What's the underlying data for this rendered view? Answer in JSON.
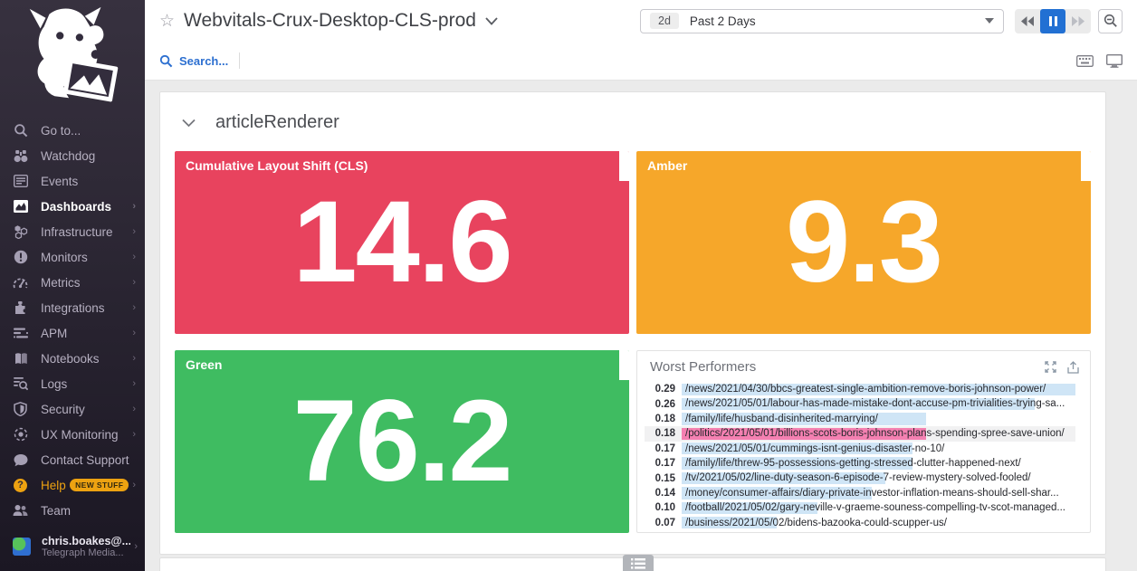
{
  "sidebar": {
    "logo": "datadog-dog-logo",
    "items": [
      {
        "label": "Go to...",
        "icon": "search-icon",
        "arrow": false,
        "active": false
      },
      {
        "label": "Watchdog",
        "icon": "binoculars-icon",
        "arrow": false,
        "active": false
      },
      {
        "label": "Events",
        "icon": "event-list-icon",
        "arrow": false,
        "active": false
      },
      {
        "label": "Dashboards",
        "icon": "dashboard-chart-icon",
        "arrow": true,
        "active": true
      },
      {
        "label": "Infrastructure",
        "icon": "hexagons-icon",
        "arrow": true,
        "active": false
      },
      {
        "label": "Monitors",
        "icon": "alert-circle-icon",
        "arrow": true,
        "active": false
      },
      {
        "label": "Metrics",
        "icon": "gauge-icon",
        "arrow": true,
        "active": false
      },
      {
        "label": "Integrations",
        "icon": "puzzle-icon",
        "arrow": true,
        "active": false
      },
      {
        "label": "APM",
        "icon": "trace-bars-icon",
        "arrow": true,
        "active": false
      },
      {
        "label": "Notebooks",
        "icon": "notebook-icon",
        "arrow": true,
        "active": false
      },
      {
        "label": "Logs",
        "icon": "log-search-icon",
        "arrow": true,
        "active": false
      },
      {
        "label": "Security",
        "icon": "shield-icon",
        "arrow": true,
        "active": false
      },
      {
        "label": "UX Monitoring",
        "icon": "target-icon",
        "arrow": true,
        "active": false
      },
      {
        "label": "Contact Support",
        "icon": "chat-bubble-icon",
        "arrow": false,
        "active": false
      },
      {
        "label": "Help",
        "icon": "help-circle-icon",
        "arrow": true,
        "active": false,
        "help": true,
        "badge": "NEW STUFF"
      },
      {
        "label": "Team",
        "icon": "people-icon",
        "arrow": false,
        "active": false
      }
    ],
    "user": {
      "name": "chris.boakes@...",
      "org": "Telegraph Media...",
      "avatar": "user-avatar"
    }
  },
  "header": {
    "title": "Webvitals-Crux-Desktop-CLS-prod",
    "star_icon": "☆",
    "search_label": "Search...",
    "time_range": {
      "chip": "2d",
      "label": "Past 2 Days"
    }
  },
  "section": {
    "title": "articleRenderer"
  },
  "widgets": {
    "stats": [
      {
        "name": "cls-widget",
        "title": "Cumulative Layout Shift (CLS)",
        "value": "14.6",
        "color": "#e8435e"
      },
      {
        "name": "amber-widget",
        "title": "Amber",
        "value": "9.3",
        "color": "#f6a72a"
      },
      {
        "name": "green-widget",
        "title": "Green",
        "value": "76.2",
        "color": "#3fbc61"
      }
    ],
    "worst_performers": {
      "title": "Worst Performers",
      "max_value": 0.29,
      "bar_colors": {
        "blue": "#cfe5f6",
        "pink": "#f480b1"
      },
      "rows": [
        {
          "value": "0.29",
          "url": "/news/2021/04/30/bbcs-greatest-single-ambition-remove-boris-johnson-power/",
          "bar": "blue",
          "state": "normal"
        },
        {
          "value": "0.26",
          "url": "/news/2021/05/01/labour-has-made-mistake-dont-accuse-pm-trivialities-trying-sa...",
          "bar": "blue",
          "state": "normal"
        },
        {
          "value": "0.18",
          "url": "/family/life/husband-disinherited-marrying/",
          "bar": "blue",
          "state": "normal"
        },
        {
          "value": "0.18",
          "url": "/politics/2021/05/01/billions-scots-boris-johnson-plans-spending-spree-save-union/",
          "bar": "pink",
          "state": "hover"
        },
        {
          "value": "0.17",
          "url": "/news/2021/05/01/cummings-isnt-genius-disaster-no-10/",
          "bar": "blue",
          "state": "normal"
        },
        {
          "value": "0.17",
          "url": "/family/life/threw-95-possessions-getting-stressed-clutter-happened-next/",
          "bar": "blue",
          "state": "normal"
        },
        {
          "value": "0.15",
          "url": "/tv/2021/05/02/line-duty-season-6-episode-7-review-mystery-solved-fooled/",
          "bar": "blue",
          "state": "normal"
        },
        {
          "value": "0.14",
          "url": "/money/consumer-affairs/diary-private-investor-inflation-means-should-sell-shar...",
          "bar": "blue",
          "state": "normal"
        },
        {
          "value": "0.10",
          "url": "/football/2021/05/02/gary-neville-v-graeme-souness-compelling-tv-scot-managed...",
          "bar": "blue",
          "state": "normal"
        },
        {
          "value": "0.07",
          "url": "/business/2021/05/02/bidens-bazooka-could-scupper-us/",
          "bar": "blue",
          "state": "normal"
        }
      ]
    }
  },
  "colors": {
    "red": "#e8435e",
    "amber": "#f6a72a",
    "green": "#3fbc61",
    "bar_blue": "#cfe5f6",
    "bar_pink": "#f480b1",
    "accent_blue": "#2c6fd0",
    "pause_blue": "#2270d3",
    "help_orange": "#eda211"
  }
}
